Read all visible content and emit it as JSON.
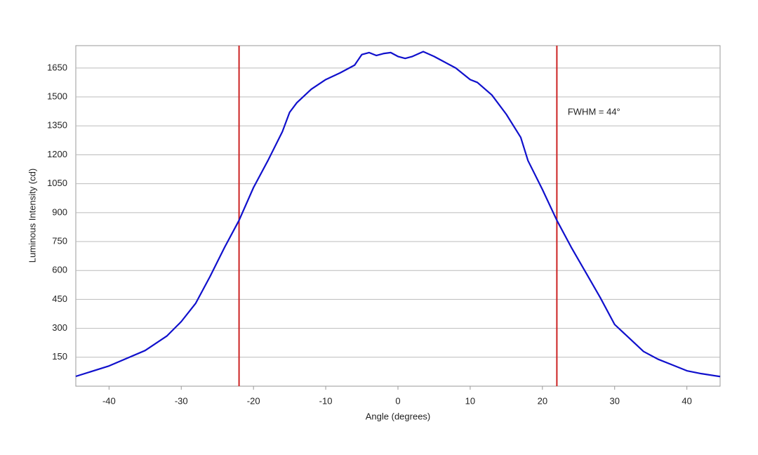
{
  "chart_data": {
    "type": "line",
    "x_label": "Angle (degrees)",
    "y_label": "Luminous Intensity (cd)",
    "xlim": [
      -44.6,
      44.6
    ],
    "ylim": [
      0,
      1766
    ],
    "xticks": [
      -40,
      -30,
      -20,
      -10,
      0,
      10,
      20,
      30,
      40
    ],
    "yticks": [
      150,
      300,
      450,
      600,
      750,
      900,
      1050,
      1200,
      1350,
      1500,
      1650
    ],
    "grid": true,
    "series": [
      {
        "color": "#1010cc",
        "x": [
          -44.6,
          -40,
          -35,
          -32,
          -30,
          -28,
          -26,
          -24,
          -22,
          -20,
          -18,
          -16,
          -15,
          -14,
          -12,
          -10,
          -8,
          -6,
          -5,
          -4,
          -3,
          -2,
          -1,
          0,
          1,
          2,
          3.5,
          5,
          6,
          8,
          10,
          11,
          13,
          15,
          17,
          18,
          20,
          22,
          24,
          26,
          28,
          30,
          32,
          34,
          36,
          38,
          40,
          42,
          44.6
        ],
        "values": [
          51,
          105,
          185,
          260,
          335,
          430,
          570,
          720,
          860,
          1030,
          1170,
          1320,
          1420,
          1470,
          1540,
          1590,
          1625,
          1665,
          1720,
          1730,
          1715,
          1725,
          1730,
          1710,
          1700,
          1710,
          1735,
          1710,
          1690,
          1650,
          1590,
          1575,
          1510,
          1410,
          1290,
          1170,
          1020,
          860,
          720,
          590,
          460,
          320,
          250,
          180,
          140,
          110,
          80,
          65,
          50
        ]
      }
    ],
    "vlines": {
      "color": "#cc2222",
      "x": [
        -22,
        22
      ]
    },
    "annotation": {
      "text": "FWHM = 44°",
      "x": 23.5,
      "y": 1420
    }
  }
}
